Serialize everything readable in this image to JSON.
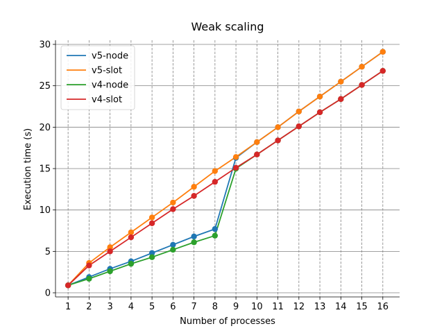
{
  "chart_data": {
    "type": "line",
    "title": "Weak scaling",
    "xlabel": "Number of processes",
    "ylabel": "Execution time (s)",
    "xlim": [
      0.4,
      16.8
    ],
    "ylim": [
      -0.5,
      30.5
    ],
    "xticks": [
      1,
      2,
      3,
      4,
      5,
      6,
      7,
      8,
      9,
      10,
      11,
      12,
      13,
      14,
      15,
      16
    ],
    "yticks": [
      0,
      5,
      10,
      15,
      20,
      25,
      30
    ],
    "grid": {
      "x": "dashed",
      "y": "solid"
    },
    "legend_position": "upper-left",
    "series": [
      {
        "name": "v5-node",
        "color": "#1f77b4",
        "x": [
          1,
          2,
          3,
          4,
          5,
          6,
          7,
          8,
          9,
          10,
          11,
          12,
          13,
          14,
          15,
          16
        ],
        "y": [
          0.9,
          1.9,
          2.9,
          3.8,
          4.8,
          5.8,
          6.8,
          7.7,
          16.3,
          18.2,
          20.0,
          21.9,
          23.7,
          25.5,
          27.3,
          29.1
        ]
      },
      {
        "name": "v5-slot",
        "color": "#ff7f0e",
        "x": [
          1,
          2,
          3,
          4,
          5,
          6,
          7,
          8,
          9,
          10,
          11,
          12,
          13,
          14,
          15,
          16
        ],
        "y": [
          0.9,
          3.6,
          5.5,
          7.3,
          9.1,
          10.9,
          12.8,
          14.7,
          16.4,
          18.2,
          20.0,
          21.9,
          23.7,
          25.5,
          27.3,
          29.1
        ]
      },
      {
        "name": "v4-node",
        "color": "#2ca02c",
        "x": [
          1,
          2,
          3,
          4,
          5,
          6,
          7,
          8,
          9,
          10,
          11,
          12,
          13,
          14,
          15,
          16
        ],
        "y": [
          0.9,
          1.7,
          2.6,
          3.5,
          4.3,
          5.2,
          6.1,
          6.9,
          15.0,
          16.7,
          18.4,
          20.1,
          21.8,
          23.4,
          25.1,
          26.8
        ]
      },
      {
        "name": "v4-slot",
        "color": "#d62728",
        "x": [
          1,
          2,
          3,
          4,
          5,
          6,
          7,
          8,
          9,
          10,
          11,
          12,
          13,
          14,
          15,
          16
        ],
        "y": [
          0.9,
          3.3,
          5.0,
          6.7,
          8.4,
          10.1,
          11.7,
          13.4,
          15.1,
          16.7,
          18.4,
          20.1,
          21.8,
          23.4,
          25.1,
          26.8
        ]
      }
    ]
  }
}
